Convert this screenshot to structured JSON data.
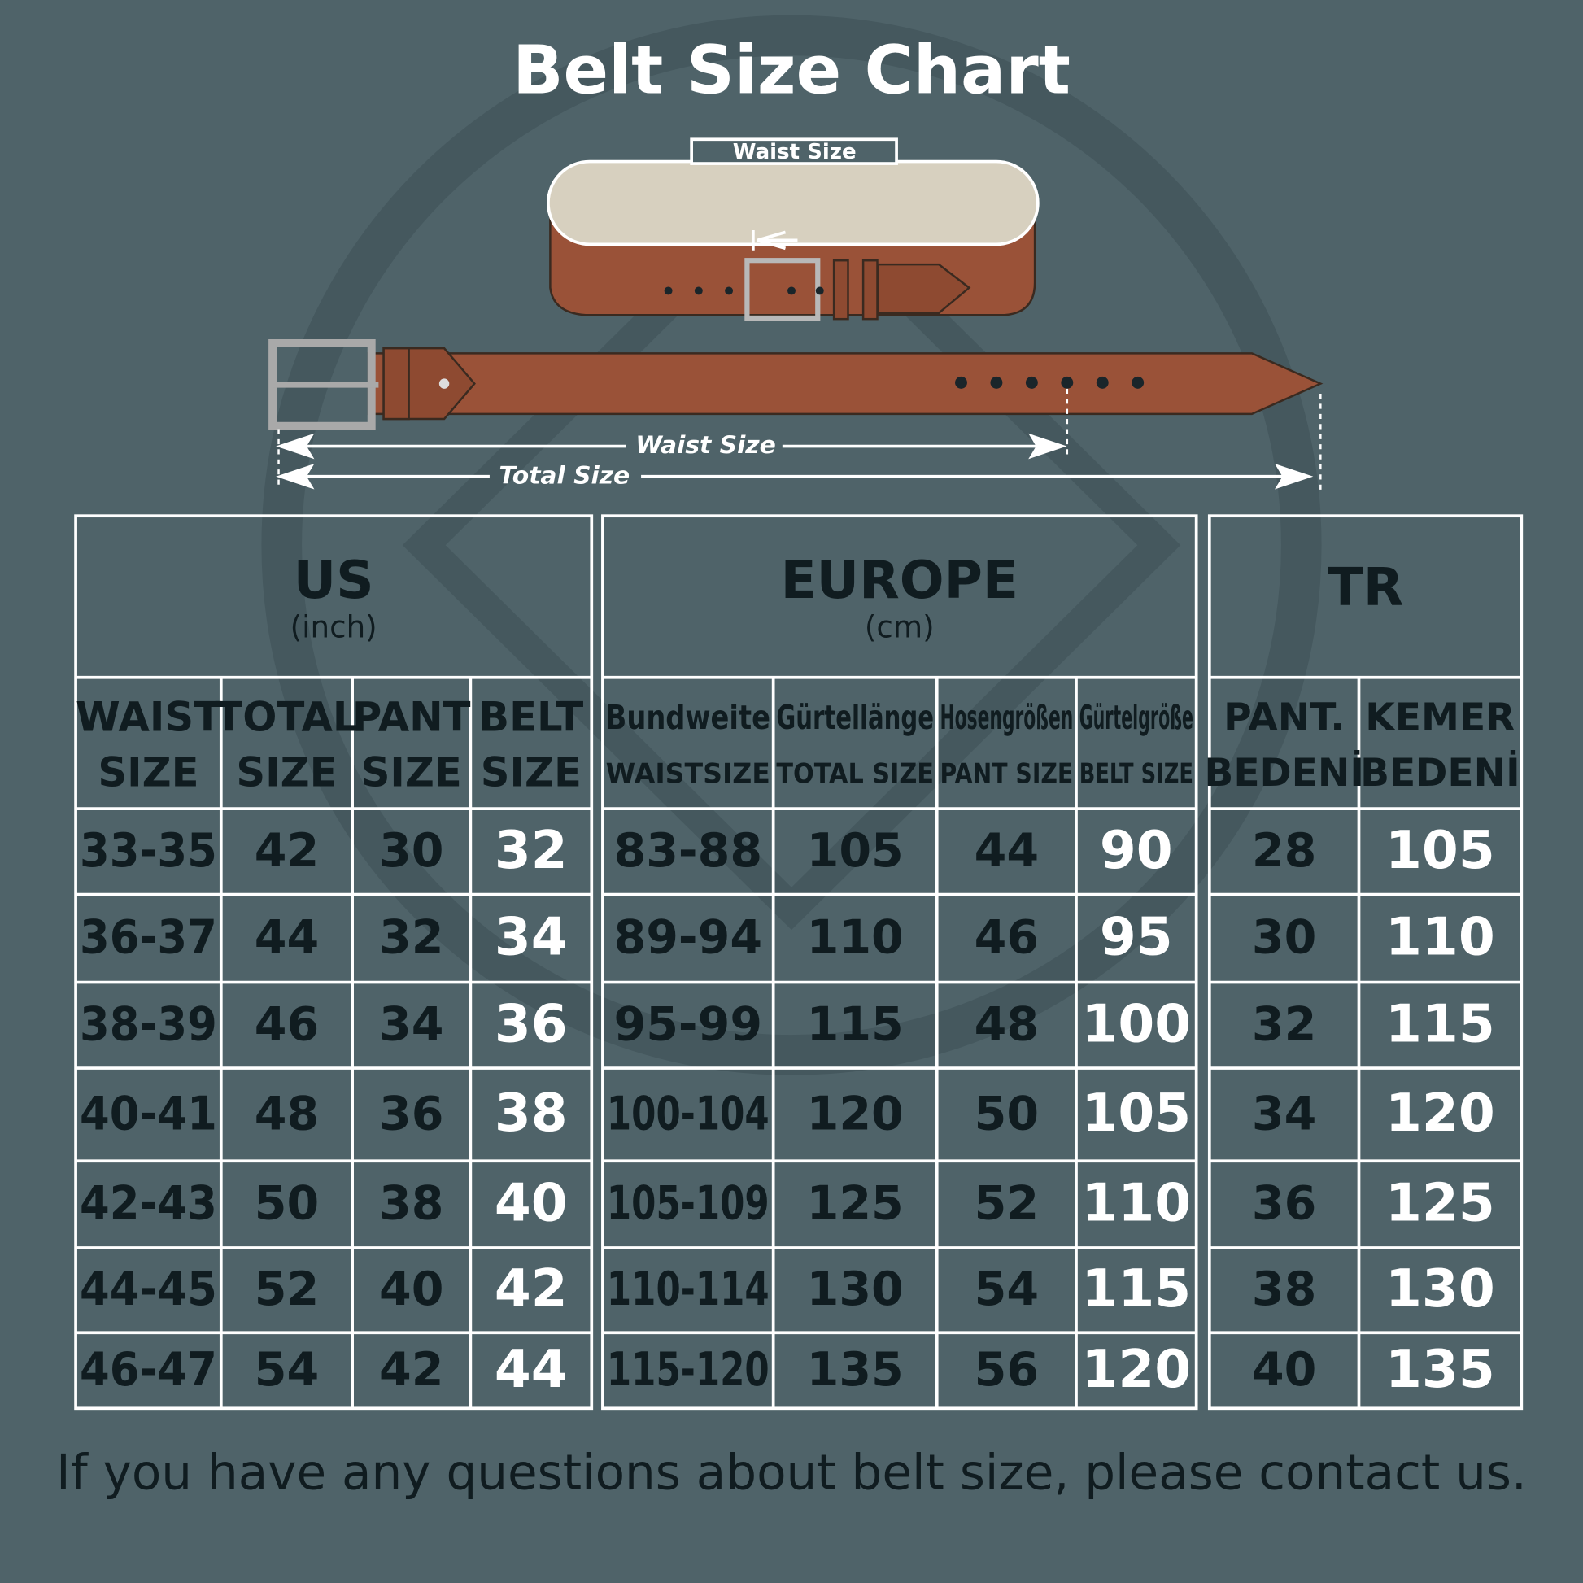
{
  "title": "Belt Size Chart",
  "diagram": {
    "loop_label": "Waist Size",
    "waist_label": "Waist Size",
    "total_label": "Total Size"
  },
  "tables": {
    "us": {
      "heading": "US",
      "unit": "(inch)",
      "columns": [
        [
          "WAIST",
          "SIZE"
        ],
        [
          "TOTAL",
          "SIZE"
        ],
        [
          "PANT",
          "SIZE"
        ],
        [
          "BELT",
          "SIZE"
        ]
      ],
      "rows": [
        [
          "33-35",
          42,
          30,
          32
        ],
        [
          "36-37",
          44,
          32,
          34
        ],
        [
          "38-39",
          46,
          34,
          36
        ],
        [
          "40-41",
          48,
          36,
          38
        ],
        [
          "42-43",
          50,
          38,
          40
        ],
        [
          "44-45",
          52,
          40,
          42
        ],
        [
          "46-47",
          54,
          42,
          44
        ]
      ]
    },
    "europe": {
      "heading": "EUROPE",
      "unit": "(cm)",
      "columns": [
        [
          "Bundweite",
          "WAISTSIZE"
        ],
        [
          "Gürtellänge",
          "TOTAL SIZE"
        ],
        [
          "Hosengrößen",
          "PANT SIZE"
        ],
        [
          "Gürtelgröße",
          "BELT SIZE"
        ]
      ],
      "rows": [
        [
          "83-88",
          105,
          44,
          90
        ],
        [
          "89-94",
          110,
          46,
          95
        ],
        [
          "95-99",
          115,
          48,
          100
        ],
        [
          "100-104",
          120,
          50,
          105
        ],
        [
          "105-109",
          125,
          52,
          110
        ],
        [
          "110-114",
          130,
          54,
          115
        ],
        [
          "115-120",
          135,
          56,
          120
        ]
      ]
    },
    "tr": {
      "heading": "TR",
      "columns": [
        [
          "PANT.",
          "BEDENİ"
        ],
        [
          "KEMER",
          "BEDENİ"
        ]
      ],
      "rows": [
        [
          28,
          105
        ],
        [
          30,
          110
        ],
        [
          32,
          115
        ],
        [
          34,
          120
        ],
        [
          36,
          125
        ],
        [
          38,
          130
        ],
        [
          40,
          135
        ]
      ]
    }
  },
  "footer": "If you have any questions about belt size, please contact us."
}
